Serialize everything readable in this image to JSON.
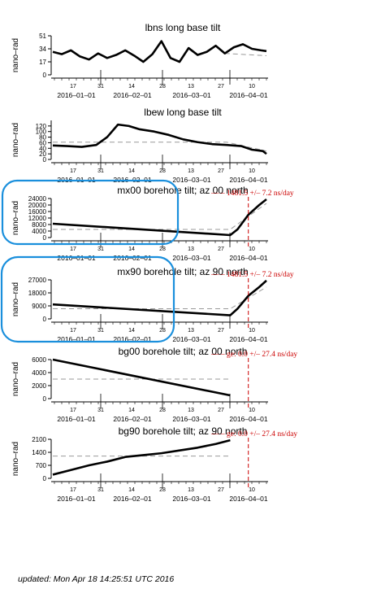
{
  "footer": {
    "updated": "updated: Mon Apr 18 14:25:51 UTC 2016"
  },
  "colors": {
    "data": "#000000",
    "trend": "#999999",
    "marker": "#cc0000",
    "highlight": "#1a8fdc"
  },
  "chart_data": [
    {
      "type": "line",
      "title": "lbns long base tilt",
      "ylabel": "nano–rad",
      "yticks": [
        0,
        17,
        34,
        51
      ],
      "ylim": [
        0,
        51
      ],
      "day_ticks": [
        "17",
        "31",
        "14",
        "28",
        "13",
        "27",
        "10"
      ],
      "date_ticks": [
        "2016–01–01",
        "2016–02–01",
        "2016–03–01",
        "2016–04–01"
      ],
      "x": [
        0,
        5,
        10,
        15,
        20,
        25,
        30,
        35,
        40,
        45,
        50,
        55,
        60,
        65,
        70,
        75,
        80,
        85,
        90,
        95,
        100,
        105,
        110,
        115,
        118
      ],
      "y": [
        30,
        27,
        32,
        24,
        20,
        28,
        22,
        26,
        32,
        25,
        17,
        27,
        44,
        22,
        17,
        35,
        26,
        30,
        38,
        28,
        36,
        40,
        34,
        32,
        31
      ],
      "trend": [
        [
          95,
          28
        ],
        [
          118,
          25
        ]
      ]
    },
    {
      "type": "line",
      "title": "lbew long base tilt",
      "ylabel": "nano–rad",
      "yticks": [
        0,
        20,
        40,
        60,
        80,
        100,
        120
      ],
      "ylim": [
        0,
        140
      ],
      "day_ticks": [
        "17",
        "31",
        "14",
        "28",
        "13",
        "27",
        "10"
      ],
      "date_ticks": [
        "2016–01–01",
        "2016–02–01",
        "2016–03–01",
        "2016–04–01"
      ],
      "x": [
        0,
        8,
        16,
        24,
        30,
        36,
        42,
        48,
        56,
        64,
        72,
        80,
        88,
        96,
        104,
        110,
        116,
        118
      ],
      "y": [
        50,
        48,
        45,
        52,
        80,
        125,
        120,
        108,
        100,
        88,
        72,
        62,
        55,
        52,
        48,
        35,
        30,
        20
      ],
      "trend": [
        [
          0,
          62
        ],
        [
          96,
          62
        ],
        [
          118,
          30
        ]
      ]
    },
    {
      "type": "line",
      "title": "mx00 borehole tilt; az 00 north",
      "annotation": "–– – 1481.5 +/– 7.2 ns/day",
      "ylabel": "nano–rad",
      "yticks": [
        0,
        4000,
        8000,
        12000,
        16000,
        20000,
        24000
      ],
      "ylim": [
        0,
        24000
      ],
      "day_ticks": [
        "17",
        "31",
        "14",
        "28",
        "13",
        "27",
        "10"
      ],
      "date_ticks": [
        "2016–01–01",
        "2016–02–01",
        "2016–03–01",
        "2016–04–01"
      ],
      "x": [
        0,
        98,
        102,
        108,
        114,
        118
      ],
      "y": [
        8500,
        1500,
        5000,
        14000,
        20000,
        23500
      ],
      "trend": [
        [
          0,
          5000
        ],
        [
          98,
          5000
        ],
        [
          118,
          21000
        ]
      ],
      "marker_x": 108
    },
    {
      "type": "line",
      "title": "mx90 borehole tilt; az 90 north",
      "annotation": "–– – 1481.5 +/– 7.2 ns/day",
      "ylabel": "nano–rad",
      "yticks": [
        0,
        9000,
        18000,
        27000
      ],
      "ylim": [
        0,
        27000
      ],
      "day_ticks": [
        "17",
        "31",
        "14",
        "28",
        "13",
        "27",
        "10"
      ],
      "date_ticks": [
        "2016–01–01",
        "2016–02–01",
        "2016–03–01",
        "2016–04–01"
      ],
      "x": [
        0,
        98,
        102,
        108,
        114,
        118
      ],
      "y": [
        10000,
        2500,
        7000,
        16000,
        22000,
        26500
      ],
      "trend": [
        [
          0,
          7000
        ],
        [
          98,
          7000
        ],
        [
          118,
          22000
        ]
      ],
      "marker_x": 108
    },
    {
      "type": "line",
      "title": "bg00 borehole tilt; az 00 north",
      "annotation": "–– – ge: 0.0 +/– 27.4 ns/day",
      "ylabel": "nano–rad",
      "yticks": [
        0,
        2000,
        4000,
        6000
      ],
      "ylim": [
        0,
        6000
      ],
      "day_ticks": [
        "17",
        "31",
        "14",
        "28",
        "13",
        "27",
        "10"
      ],
      "date_ticks": [
        "2016–01–01",
        "2016–02–01",
        "2016–03–01",
        "2016–04–01"
      ],
      "x": [
        0,
        98
      ],
      "y": [
        6000,
        500
      ],
      "trend": [
        [
          0,
          3000
        ],
        [
          98,
          3000
        ]
      ],
      "marker_x": 108
    },
    {
      "type": "line",
      "title": "bg90 borehole tilt; az 90 north",
      "annotation": "–– – ge: 0.0 +/– 27.4 ns/day",
      "ylabel": "nano–rad",
      "yticks": [
        0,
        700,
        1400,
        2100
      ],
      "ylim": [
        0,
        2100
      ],
      "day_ticks": [
        "17",
        "31",
        "14",
        "28",
        "13",
        "27",
        "10"
      ],
      "date_ticks": [
        "2016–01–01",
        "2016–02–01",
        "2016–03–01",
        "2016–04–01"
      ],
      "x": [
        0,
        10,
        20,
        30,
        40,
        50,
        60,
        70,
        80,
        90,
        98
      ],
      "y": [
        200,
        450,
        700,
        900,
        1150,
        1250,
        1350,
        1500,
        1650,
        1850,
        2050
      ],
      "trend": [
        [
          0,
          1200
        ],
        [
          98,
          1200
        ]
      ],
      "marker_x": 108
    }
  ]
}
